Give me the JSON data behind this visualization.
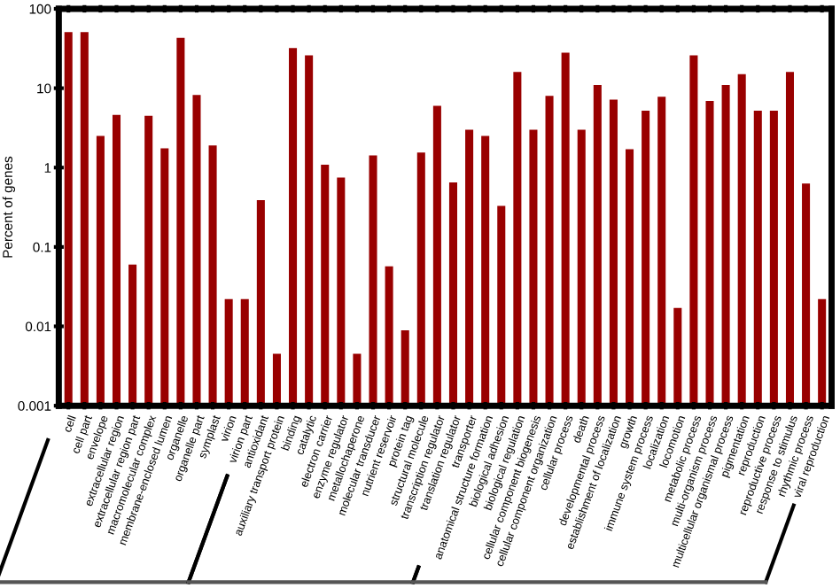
{
  "chart_data": {
    "type": "bar",
    "ylabel": "Percent of genes",
    "categories": [
      "cell",
      "cell part",
      "envelope",
      "extracellular region",
      "extracellular region part",
      "macromolecular complex",
      "membrane-enclosed lumen",
      "organelle",
      "organelle part",
      "symplast",
      "virion",
      "virion part",
      "antioxidant",
      "auxiliary transport protein",
      "binding",
      "catalytic",
      "electron carrier",
      "enzyme regulator",
      "metallochaperone",
      "molecular transducer",
      "nutrient reservoir",
      "protein tag",
      "structural molecule",
      "transcription regulator",
      "translation regulator",
      "transporter",
      "anatomical structure formation",
      "biological adhesion",
      "biological regulation",
      "cellular component biogenesis",
      "cellular component organization",
      "cellular process",
      "death",
      "developmental process",
      "establishment of localization",
      "growth",
      "immune system process",
      "localization",
      "locomotion",
      "metabolic process",
      "multi-organism process",
      "multicellular organismal process",
      "pigmentation",
      "reproduction",
      "reproductive process",
      "response to stimulus",
      "rhythmic process",
      "viral reproduction"
    ],
    "values": [
      51,
      51,
      2.5,
      4.6,
      0.06,
      4.5,
      1.75,
      43,
      8.2,
      1.9,
      0.022,
      0.022,
      0.39,
      0.0045,
      32,
      26,
      1.09,
      0.75,
      0.0045,
      1.42,
      0.057,
      0.0089,
      1.55,
      6.0,
      0.65,
      3.0,
      2.5,
      0.33,
      16,
      3.0,
      8.0,
      28,
      3.0,
      11,
      7.2,
      1.7,
      5.2,
      7.8,
      0.017,
      26,
      6.9,
      11,
      15,
      5.2,
      5.2,
      16,
      0.63,
      0.022
    ],
    "color": "#990000",
    "log": true,
    "ylim": [
      0.001,
      100
    ],
    "yticks": [
      {
        "value": 0.001,
        "label": "0.001"
      },
      {
        "value": 0.01,
        "label": "0.01"
      },
      {
        "value": 0.1,
        "label": "0.1"
      },
      1,
      10,
      100
    ],
    "grid": false,
    "legend": false
  }
}
